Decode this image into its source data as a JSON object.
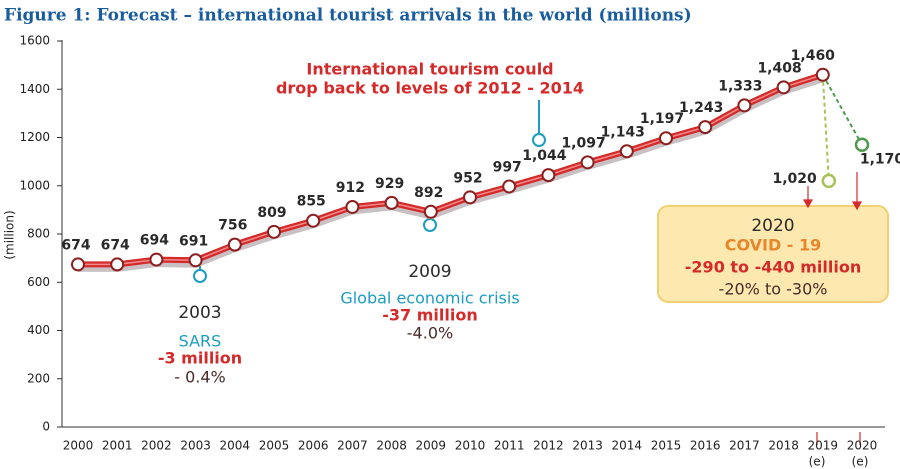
{
  "chart_data": {
    "type": "line",
    "title": "Figure 1: Forecast – international tourist arrivals in the world (millions)",
    "y_label": "(million)",
    "categories": [
      "2000",
      "2001",
      "2002",
      "2003",
      "2004",
      "2005",
      "2006",
      "2007",
      "2008",
      "2009",
      "2010",
      "2011",
      "2012",
      "2013",
      "2014",
      "2015",
      "2016",
      "2017",
      "2018",
      "2019",
      "2020"
    ],
    "estimate_label": "(e)",
    "series": [
      {
        "color": "#d42a2a",
        "values": [
          674,
          674,
          694,
          691,
          756,
          809,
          855,
          912,
          929,
          892,
          952,
          997,
          1044,
          1097,
          1143,
          1197,
          1243,
          1333,
          1408,
          1460,
          null
        ],
        "value_labels": [
          "674",
          "674",
          "694",
          "691",
          "756",
          "809",
          "855",
          "912",
          "929",
          "892",
          "952",
          "997",
          "1,044",
          "1,097",
          "1,143",
          "1,197",
          "1,243",
          "1,333",
          "1,408",
          "1,460",
          null
        ]
      }
    ],
    "forecast": [
      {
        "value": 1020,
        "label": "1,020",
        "color": "#a8c256"
      },
      {
        "value": 1170,
        "label": "1,170",
        "color": "#4f9a4f"
      }
    ],
    "ylim": [
      0,
      1600
    ],
    "yticks": [
      0,
      200,
      400,
      600,
      800,
      1000,
      1200,
      1400,
      1600
    ],
    "annotations": {
      "sars": {
        "year": "2003",
        "name": "SARS",
        "change": "-3 million",
        "percent": "- 0.4%"
      },
      "crisis": {
        "year": "2009",
        "name": "Global economic crisis",
        "change": "-37 million",
        "percent": "-4.0%"
      },
      "drop": [
        "International tourism could",
        "drop back to levels of 2012 - 2014"
      ],
      "covid": {
        "year": "2020",
        "name": "COVID - 19",
        "change": "-290 to -440 million",
        "percent": "-20% to -30%"
      }
    }
  }
}
